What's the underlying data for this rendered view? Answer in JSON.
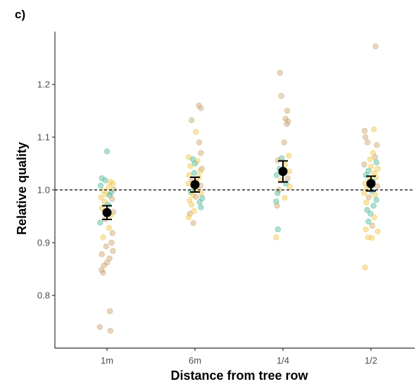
{
  "chart_data": {
    "type": "scatter",
    "panel_label": "c)",
    "xlabel": "Distance from tree row",
    "ylabel": "Relative quality",
    "categories": [
      "1m",
      "6m",
      "1/4",
      "1/2"
    ],
    "ylim": [
      0.7,
      1.3
    ],
    "yticks": [
      0.8,
      0.9,
      1.0,
      1.1,
      1.2
    ],
    "ytick_labels": [
      "0.8",
      "0.9",
      "1.0",
      "1.1",
      "1.2"
    ],
    "reference_line": {
      "y": 1.0,
      "style": "dashed"
    },
    "grid": false,
    "legend": "none",
    "colors": {
      "teal": "#4fb99a",
      "gold": "#f0c64a",
      "tan": "#c9a46c",
      "mean": "#000000",
      "axis": "#333333"
    },
    "means": [
      {
        "category": "1m",
        "mean": 0.957,
        "lower": 0.944,
        "upper": 0.97
      },
      {
        "category": "6m",
        "mean": 1.01,
        "lower": 0.996,
        "upper": 1.024
      },
      {
        "category": "1/4",
        "mean": 1.035,
        "lower": 1.015,
        "upper": 1.055
      },
      {
        "category": "1/2",
        "mean": 1.012,
        "lower": 0.998,
        "upper": 1.026
      }
    ],
    "points": [
      {
        "category": "1m",
        "values": [
          {
            "y": 1.073,
            "c": "teal",
            "j": 0.0
          },
          {
            "y": 1.022,
            "c": "teal",
            "j": -0.12
          },
          {
            "y": 1.018,
            "c": "teal",
            "j": -0.04
          },
          {
            "y": 1.015,
            "c": "gold",
            "j": 0.08
          },
          {
            "y": 1.012,
            "c": "gold",
            "j": 0.14
          },
          {
            "y": 1.008,
            "c": "teal",
            "j": -0.15
          },
          {
            "y": 1.005,
            "c": "gold",
            "j": 0.04
          },
          {
            "y": 1.001,
            "c": "tan",
            "j": 0.16
          },
          {
            "y": 0.998,
            "c": "gold",
            "j": -0.08
          },
          {
            "y": 0.995,
            "c": "teal",
            "j": 0.1
          },
          {
            "y": 0.992,
            "c": "gold",
            "j": -0.02
          },
          {
            "y": 0.99,
            "c": "teal",
            "j": 0.06
          },
          {
            "y": 0.986,
            "c": "gold",
            "j": -0.14
          },
          {
            "y": 0.983,
            "c": "tan",
            "j": 0.12
          },
          {
            "y": 0.978,
            "c": "gold",
            "j": -0.06
          },
          {
            "y": 0.972,
            "c": "teal",
            "j": 0.02
          },
          {
            "y": 0.965,
            "c": "gold",
            "j": -0.12
          },
          {
            "y": 0.958,
            "c": "tan",
            "j": 0.15
          },
          {
            "y": 0.952,
            "c": "gold",
            "j": 0.09
          },
          {
            "y": 0.945,
            "c": "tan",
            "j": -0.04
          },
          {
            "y": 0.938,
            "c": "teal",
            "j": -0.16
          },
          {
            "y": 0.928,
            "c": "gold",
            "j": 0.05
          },
          {
            "y": 0.918,
            "c": "tan",
            "j": 0.13
          },
          {
            "y": 0.91,
            "c": "gold",
            "j": -0.09
          },
          {
            "y": 0.9,
            "c": "tan",
            "j": 0.11
          },
          {
            "y": 0.893,
            "c": "tan",
            "j": -0.02
          },
          {
            "y": 0.884,
            "c": "tan",
            "j": 0.14
          },
          {
            "y": 0.878,
            "c": "tan",
            "j": -0.12
          },
          {
            "y": 0.87,
            "c": "tan",
            "j": 0.06
          },
          {
            "y": 0.862,
            "c": "tan",
            "j": 0.0
          },
          {
            "y": 0.857,
            "c": "tan",
            "j": -0.07
          },
          {
            "y": 0.848,
            "c": "tan",
            "j": -0.13
          },
          {
            "y": 0.843,
            "c": "tan",
            "j": -0.09
          },
          {
            "y": 0.77,
            "c": "tan",
            "j": 0.07
          },
          {
            "y": 0.74,
            "c": "tan",
            "j": -0.17
          },
          {
            "y": 0.733,
            "c": "tan",
            "j": 0.08
          }
        ]
      },
      {
        "category": "6m",
        "values": [
          {
            "y": 1.16,
            "c": "tan",
            "j": 0.09
          },
          {
            "y": 1.155,
            "c": "tan",
            "j": 0.14
          },
          {
            "y": 1.132,
            "c": "tan",
            "j": -0.08
          },
          {
            "y": 1.11,
            "c": "gold",
            "j": 0.02
          },
          {
            "y": 1.09,
            "c": "tan",
            "j": 0.1
          },
          {
            "y": 1.07,
            "c": "tan",
            "j": 0.14
          },
          {
            "y": 1.062,
            "c": "gold",
            "j": -0.15
          },
          {
            "y": 1.058,
            "c": "teal",
            "j": -0.05
          },
          {
            "y": 1.055,
            "c": "gold",
            "j": 0.06
          },
          {
            "y": 1.05,
            "c": "teal",
            "j": 0.0
          },
          {
            "y": 1.045,
            "c": "gold",
            "j": -0.11
          },
          {
            "y": 1.04,
            "c": "tan",
            "j": 0.16
          },
          {
            "y": 1.035,
            "c": "gold",
            "j": 0.12
          },
          {
            "y": 1.032,
            "c": "teal",
            "j": -0.02
          },
          {
            "y": 1.028,
            "c": "gold",
            "j": -0.14
          },
          {
            "y": 1.024,
            "c": "gold",
            "j": 0.09
          },
          {
            "y": 1.02,
            "c": "tan",
            "j": -0.07
          },
          {
            "y": 1.016,
            "c": "gold",
            "j": 0.04
          },
          {
            "y": 1.012,
            "c": "gold",
            "j": -0.16
          },
          {
            "y": 1.008,
            "c": "tan",
            "j": 0.13
          },
          {
            "y": 1.004,
            "c": "gold",
            "j": -0.03
          },
          {
            "y": 1.0,
            "c": "gold",
            "j": 0.07
          },
          {
            "y": 0.996,
            "c": "teal",
            "j": -0.1
          },
          {
            "y": 0.993,
            "c": "gold",
            "j": 0.15
          },
          {
            "y": 0.99,
            "c": "gold",
            "j": -0.05
          },
          {
            "y": 0.987,
            "c": "tan",
            "j": 0.02
          },
          {
            "y": 0.984,
            "c": "teal",
            "j": 0.17
          },
          {
            "y": 0.98,
            "c": "gold",
            "j": -0.13
          },
          {
            "y": 0.977,
            "c": "teal",
            "j": 0.11
          },
          {
            "y": 0.972,
            "c": "gold",
            "j": -0.08
          },
          {
            "y": 0.967,
            "c": "teal",
            "j": 0.14
          },
          {
            "y": 0.96,
            "c": "gold",
            "j": -0.02
          },
          {
            "y": 0.955,
            "c": "tan",
            "j": -0.12
          },
          {
            "y": 0.948,
            "c": "gold",
            "j": -0.15
          },
          {
            "y": 0.937,
            "c": "tan",
            "j": -0.04
          }
        ]
      },
      {
        "category": "1/4",
        "values": [
          {
            "y": 1.222,
            "c": "tan",
            "j": -0.07
          },
          {
            "y": 1.178,
            "c": "tan",
            "j": -0.04
          },
          {
            "y": 1.15,
            "c": "tan",
            "j": 0.1
          },
          {
            "y": 1.135,
            "c": "tan",
            "j": 0.06
          },
          {
            "y": 1.13,
            "c": "tan",
            "j": 0.12
          },
          {
            "y": 1.125,
            "c": "tan",
            "j": 0.09
          },
          {
            "y": 1.09,
            "c": "tan",
            "j": 0.03
          },
          {
            "y": 1.065,
            "c": "gold",
            "j": 0.14
          },
          {
            "y": 1.06,
            "c": "teal",
            "j": -0.03
          },
          {
            "y": 1.056,
            "c": "tan",
            "j": -0.12
          },
          {
            "y": 1.048,
            "c": "gold",
            "j": 0.05
          },
          {
            "y": 1.04,
            "c": "teal",
            "j": -0.08
          },
          {
            "y": 1.035,
            "c": "gold",
            "j": 0.15
          },
          {
            "y": 1.028,
            "c": "teal",
            "j": -0.15
          },
          {
            "y": 1.022,
            "c": "tan",
            "j": 0.11
          },
          {
            "y": 1.018,
            "c": "gold",
            "j": -0.05
          },
          {
            "y": 1.012,
            "c": "teal",
            "j": 0.07
          },
          {
            "y": 1.006,
            "c": "gold",
            "j": 0.16
          },
          {
            "y": 1.0,
            "c": "tan",
            "j": -0.1
          },
          {
            "y": 0.994,
            "c": "teal",
            "j": -0.13
          },
          {
            "y": 0.985,
            "c": "gold",
            "j": 0.04
          },
          {
            "y": 0.978,
            "c": "teal",
            "j": -0.16
          },
          {
            "y": 0.97,
            "c": "tan",
            "j": -0.14
          },
          {
            "y": 0.925,
            "c": "teal",
            "j": -0.12
          },
          {
            "y": 0.91,
            "c": "gold",
            "j": -0.16
          }
        ]
      },
      {
        "category": "1/2",
        "values": [
          {
            "y": 1.272,
            "c": "tan",
            "j": 0.11
          },
          {
            "y": 1.115,
            "c": "gold",
            "j": 0.07
          },
          {
            "y": 1.112,
            "c": "tan",
            "j": -0.15
          },
          {
            "y": 1.1,
            "c": "tan",
            "j": -0.13
          },
          {
            "y": 1.09,
            "c": "tan",
            "j": -0.08
          },
          {
            "y": 1.085,
            "c": "tan",
            "j": 0.14
          },
          {
            "y": 1.07,
            "c": "gold",
            "j": 0.05
          },
          {
            "y": 1.062,
            "c": "tan",
            "j": 0.1
          },
          {
            "y": 1.058,
            "c": "gold",
            "j": -0.02
          },
          {
            "y": 1.052,
            "c": "teal",
            "j": 0.13
          },
          {
            "y": 1.048,
            "c": "tan",
            "j": -0.16
          },
          {
            "y": 1.044,
            "c": "gold",
            "j": 0.0
          },
          {
            "y": 1.04,
            "c": "gold",
            "j": 0.16
          },
          {
            "y": 1.036,
            "c": "teal",
            "j": -0.06
          },
          {
            "y": 1.032,
            "c": "gold",
            "j": 0.08
          },
          {
            "y": 1.028,
            "c": "teal",
            "j": -0.12
          },
          {
            "y": 1.024,
            "c": "gold",
            "j": 0.12
          },
          {
            "y": 1.02,
            "c": "gold",
            "j": -0.03
          },
          {
            "y": 1.016,
            "c": "teal",
            "j": 0.04
          },
          {
            "y": 1.012,
            "c": "gold",
            "j": -0.14
          },
          {
            "y": 1.007,
            "c": "tan",
            "j": 0.15
          },
          {
            "y": 1.003,
            "c": "gold",
            "j": -0.09
          },
          {
            "y": 0.998,
            "c": "teal",
            "j": 0.02
          },
          {
            "y": 0.994,
            "c": "gold",
            "j": -0.16
          },
          {
            "y": 0.99,
            "c": "gold",
            "j": 0.1
          },
          {
            "y": 0.986,
            "c": "tan",
            "j": -0.05
          },
          {
            "y": 0.981,
            "c": "teal",
            "j": 0.13
          },
          {
            "y": 0.976,
            "c": "gold",
            "j": -0.11
          },
          {
            "y": 0.97,
            "c": "teal",
            "j": 0.06
          },
          {
            "y": 0.962,
            "c": "teal",
            "j": -0.09
          },
          {
            "y": 0.955,
            "c": "teal",
            "j": -0.01
          },
          {
            "y": 0.948,
            "c": "gold",
            "j": 0.08
          },
          {
            "y": 0.94,
            "c": "teal",
            "j": -0.06
          },
          {
            "y": 0.932,
            "c": "tan",
            "j": 0.03
          },
          {
            "y": 0.925,
            "c": "gold",
            "j": -0.12
          },
          {
            "y": 0.921,
            "c": "gold",
            "j": 0.16
          },
          {
            "y": 0.91,
            "c": "gold",
            "j": -0.07
          },
          {
            "y": 0.909,
            "c": "gold",
            "j": 0.02
          },
          {
            "y": 0.853,
            "c": "gold",
            "j": -0.14
          }
        ]
      }
    ]
  }
}
